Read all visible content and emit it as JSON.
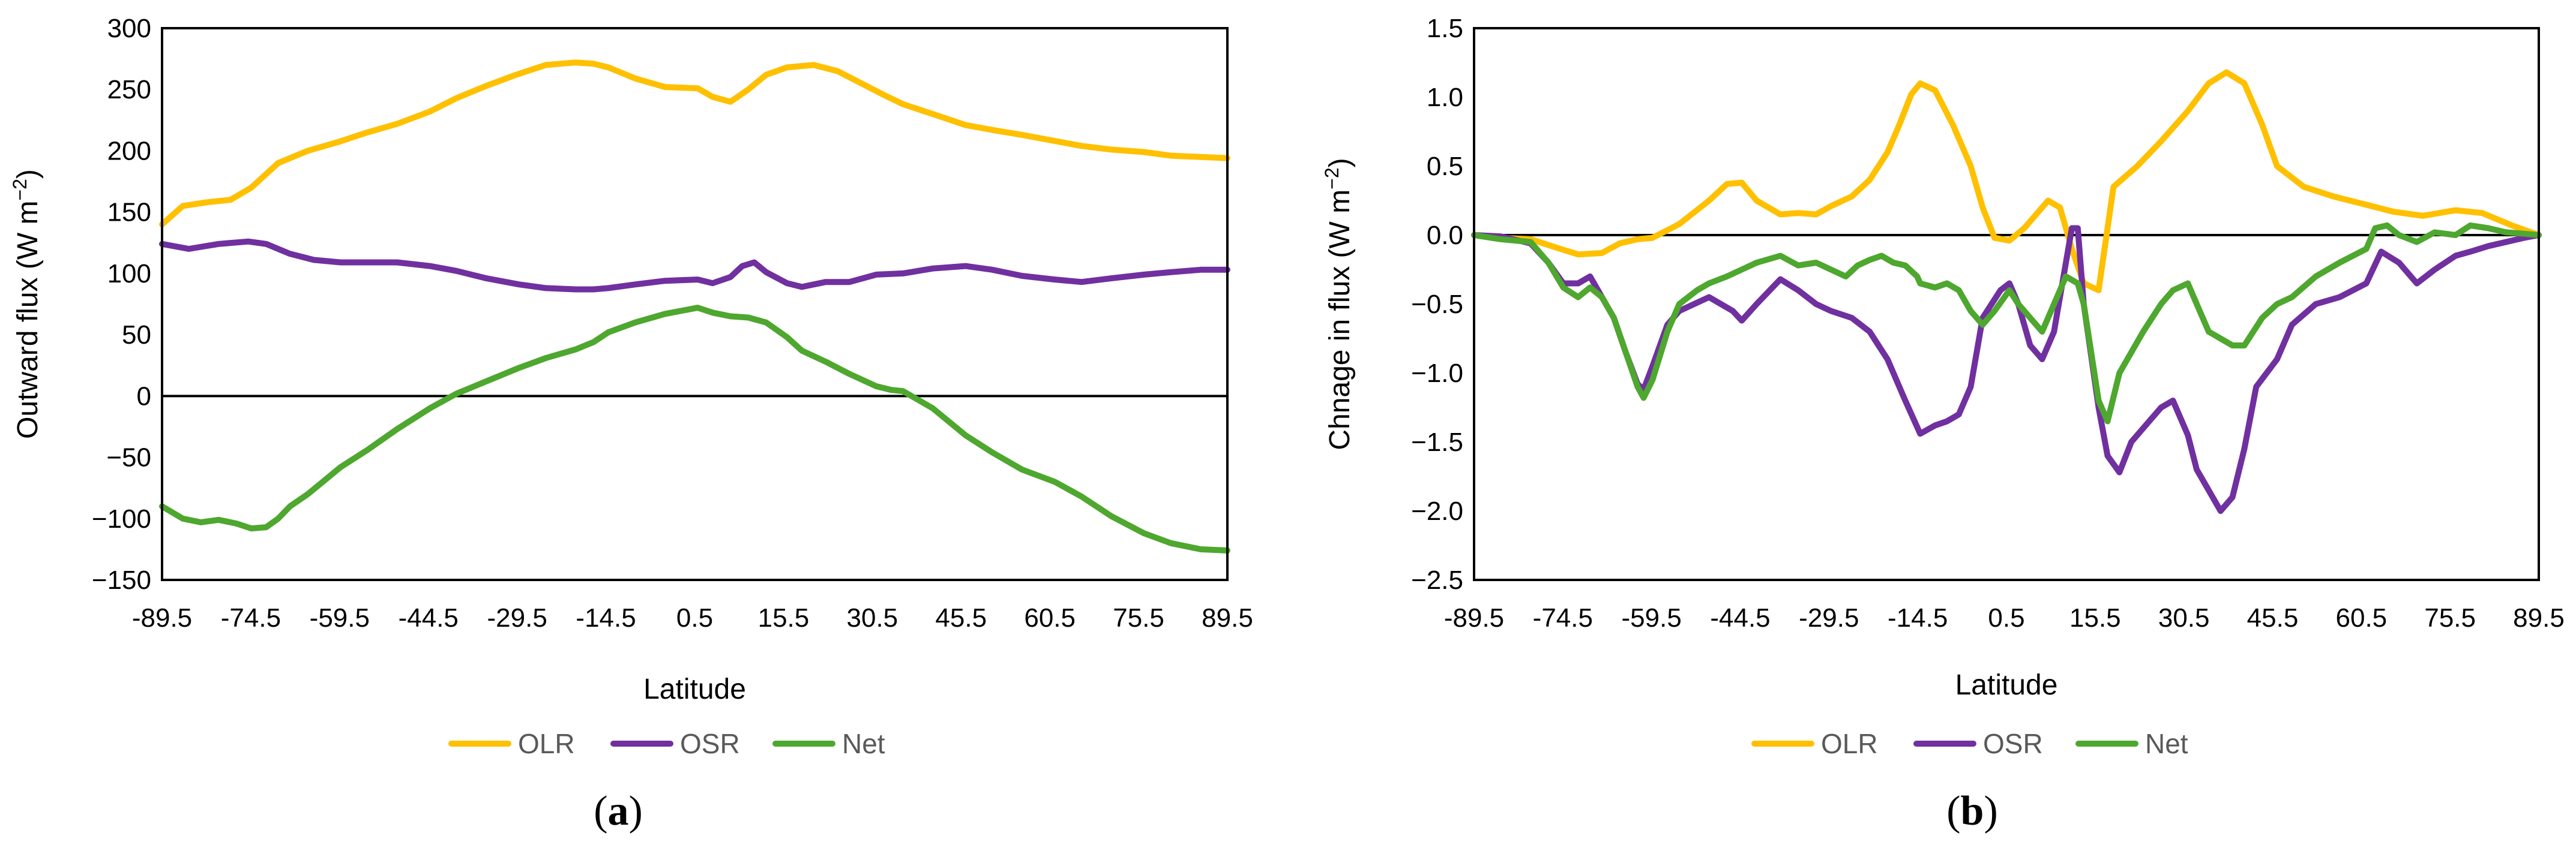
{
  "figure": {
    "panels": [
      {
        "label_open": "(",
        "label_letter": "a",
        "label_close": ")"
      },
      {
        "label_open": "(",
        "label_letter": "b",
        "label_close": ")"
      }
    ]
  },
  "colors": {
    "OLR": "#FFC000",
    "OSR": "#7030A0",
    "Net": "#4EA72E",
    "zero_line": "#000000"
  },
  "chart_data": [
    {
      "type": "line",
      "panel": "a",
      "title": "",
      "xlabel": "Latitude",
      "ylabel": "Outward flux (W m−2)",
      "ylabel_text": "Outward flux (W m",
      "ylabel_sup": "−2",
      "ylabel_close": ")",
      "xlim": [
        -89.5,
        89.5
      ],
      "ylim": [
        -150,
        300
      ],
      "xticks": [
        "-89.5",
        "-74.5",
        "-59.5",
        "-44.5",
        "-29.5",
        "-14.5",
        "0.5",
        "15.5",
        "30.5",
        "45.5",
        "60.5",
        "75.5",
        "89.5"
      ],
      "yticks": [
        "300",
        "250",
        "200",
        "150",
        "100",
        "50",
        "0",
        "−50",
        "−100",
        "−150"
      ],
      "legend_position": "bottom",
      "series": [
        {
          "name": "OLR",
          "x": [
            -89.5,
            -86,
            -82,
            -78,
            -74.5,
            -70,
            -65,
            -60,
            -55,
            -50,
            -44.5,
            -40,
            -35,
            -30,
            -25,
            -20,
            -17,
            -14.5,
            -10,
            -5,
            0.5,
            3,
            6,
            9,
            12,
            15.5,
            20,
            24,
            28,
            32,
            35,
            40,
            45.5,
            50,
            55,
            60.5,
            65,
            70,
            75.5,
            80,
            85,
            89.5
          ],
          "y": [
            140,
            155,
            158,
            160,
            170,
            190,
            200,
            207,
            215,
            222,
            232,
            243,
            253,
            262,
            270,
            272,
            271,
            268,
            259,
            252,
            251,
            244,
            240,
            250,
            262,
            268,
            270,
            265,
            255,
            245,
            238,
            230,
            221,
            217,
            213,
            208,
            204,
            201,
            199,
            196,
            195,
            194
          ]
        },
        {
          "name": "OSR",
          "x": [
            -89.5,
            -85,
            -80,
            -75,
            -72,
            -68,
            -64,
            -59.5,
            -55,
            -50,
            -44.5,
            -40,
            -35,
            -29.5,
            -25,
            -20,
            -17,
            -14.5,
            -10,
            -5,
            0.5,
            3,
            6,
            8,
            10,
            12,
            15.5,
            18,
            22,
            26,
            30.5,
            35,
            40,
            45.5,
            50,
            55,
            60.5,
            65,
            70,
            75.5,
            80,
            85,
            89.5
          ],
          "y": [
            124,
            120,
            124,
            126,
            124,
            116,
            111,
            109,
            109,
            109,
            106,
            102,
            96,
            91,
            88,
            87,
            87,
            88,
            91,
            94,
            95,
            92,
            97,
            106,
            109,
            101,
            92,
            89,
            93,
            93,
            99,
            100,
            104,
            106,
            103,
            98,
            95,
            93,
            96,
            99,
            101,
            103,
            103
          ]
        },
        {
          "name": "Net",
          "x": [
            -89.5,
            -86,
            -83,
            -80,
            -77,
            -74.5,
            -72,
            -70,
            -68,
            -65,
            -62,
            -59.5,
            -55,
            -50,
            -44.5,
            -40,
            -35,
            -29.5,
            -25,
            -20,
            -17,
            -14.5,
            -10,
            -5,
            0.5,
            3,
            6,
            9,
            12,
            15.5,
            18,
            22,
            26,
            30.5,
            33,
            35,
            40,
            45.5,
            50,
            55,
            60.5,
            65,
            70,
            75.5,
            80,
            85,
            89.5
          ],
          "y": [
            -90,
            -100,
            -103,
            -101,
            -104,
            -108,
            -107,
            -100,
            -90,
            -80,
            -68,
            -58,
            -44,
            -27,
            -10,
            2,
            12,
            23,
            31,
            38,
            44,
            52,
            60,
            67,
            72,
            68,
            65,
            64,
            60,
            48,
            37,
            28,
            18,
            8,
            5,
            4,
            -10,
            -32,
            -46,
            -60,
            -70,
            -82,
            -98,
            -112,
            -120,
            -125,
            -126
          ]
        }
      ]
    },
    {
      "type": "line",
      "panel": "b",
      "title": "",
      "xlabel": "Latitude",
      "ylabel": "Chnage in flux (W m−2)",
      "ylabel_text": "Chnage in flux (W m",
      "ylabel_sup": "−2",
      "ylabel_close": ")",
      "xlim": [
        -89.5,
        89.5
      ],
      "ylim": [
        -2.5,
        1.5
      ],
      "xticks": [
        "-89.5",
        "-74.5",
        "-59.5",
        "-44.5",
        "-29.5",
        "-14.5",
        "0.5",
        "15.5",
        "30.5",
        "45.5",
        "60.5",
        "75.5",
        "89.5"
      ],
      "yticks": [
        "1.5",
        "1.0",
        "0.5",
        "0.0",
        "−0.5",
        "−1.0",
        "−1.5",
        "−2.0",
        "−2.5"
      ],
      "legend_position": "bottom",
      "series": [
        {
          "name": "OLR",
          "x": [
            -89.5,
            -85,
            -80,
            -75,
            -72,
            -68,
            -65,
            -62,
            -59.5,
            -55,
            -50,
            -47,
            -44.5,
            -42,
            -38,
            -35,
            -32,
            -29.5,
            -26,
            -23,
            -20,
            -18,
            -16,
            -14.5,
            -12,
            -9,
            -6,
            -4,
            -2,
            0.5,
            3,
            5,
            7,
            9,
            11,
            13,
            15.5,
            18,
            22,
            26,
            30.5,
            34,
            37,
            40,
            43,
            45.5,
            50,
            55,
            60.5,
            65,
            70,
            75.5,
            80,
            85,
            89.5
          ],
          "y": [
            0.0,
            -0.02,
            -0.03,
            -0.1,
            -0.14,
            -0.13,
            -0.06,
            -0.03,
            -0.02,
            0.08,
            0.25,
            0.37,
            0.38,
            0.25,
            0.15,
            0.16,
            0.15,
            0.21,
            0.28,
            0.4,
            0.6,
            0.8,
            1.02,
            1.1,
            1.05,
            0.8,
            0.5,
            0.2,
            -0.02,
            -0.04,
            0.05,
            0.15,
            0.25,
            0.2,
            -0.1,
            -0.35,
            -0.4,
            0.35,
            0.5,
            0.68,
            0.9,
            1.1,
            1.18,
            1.1,
            0.8,
            0.5,
            0.35,
            0.28,
            0.22,
            0.17,
            0.14,
            0.18,
            0.16,
            0.07,
            0.0
          ]
        },
        {
          "name": "OSR",
          "x": [
            -89.5,
            -85,
            -80,
            -77,
            -74.5,
            -72,
            -70,
            -68,
            -66,
            -64,
            -62,
            -61,
            -59.5,
            -57,
            -55,
            -50,
            -46,
            -44.5,
            -42,
            -38,
            -35,
            -32,
            -29.5,
            -26,
            -23,
            -20,
            -17,
            -14.5,
            -12,
            -10,
            -8,
            -6,
            -4,
            -1,
            0.5,
            2,
            4,
            6,
            8,
            10,
            11,
            12,
            13,
            15.5,
            17,
            19,
            21,
            23,
            26,
            28,
            30.5,
            32,
            34,
            36,
            38,
            40,
            42,
            45.5,
            48,
            52,
            56,
            60.5,
            63,
            66,
            69,
            72,
            75.5,
            78,
            81,
            84,
            87,
            89.5
          ],
          "y": [
            0.0,
            -0.01,
            -0.06,
            -0.2,
            -0.35,
            -0.35,
            -0.3,
            -0.45,
            -0.6,
            -0.85,
            -1.08,
            -1.12,
            -0.95,
            -0.65,
            -0.55,
            -0.45,
            -0.55,
            -0.62,
            -0.5,
            -0.32,
            -0.4,
            -0.5,
            -0.55,
            -0.6,
            -0.7,
            -0.9,
            -1.2,
            -1.44,
            -1.38,
            -1.35,
            -1.3,
            -1.1,
            -0.6,
            -0.4,
            -0.35,
            -0.5,
            -0.8,
            -0.9,
            -0.7,
            -0.2,
            0.05,
            0.05,
            -0.5,
            -1.25,
            -1.6,
            -1.72,
            -1.5,
            -1.4,
            -1.25,
            -1.2,
            -1.45,
            -1.7,
            -1.85,
            -2.0,
            -1.9,
            -1.55,
            -1.1,
            -0.9,
            -0.65,
            -0.5,
            -0.45,
            -0.35,
            -0.12,
            -0.2,
            -0.35,
            -0.25,
            -0.15,
            -0.12,
            -0.08,
            -0.05,
            -0.02,
            0.0
          ]
        },
        {
          "name": "Net",
          "x": [
            -89.5,
            -85,
            -80,
            -77,
            -74.5,
            -72,
            -70,
            -68,
            -66,
            -64,
            -62,
            -61,
            -59.5,
            -57,
            -55,
            -52,
            -50,
            -47,
            -44.5,
            -42,
            -38,
            -35,
            -32,
            -29.5,
            -27,
            -25,
            -23,
            -21,
            -19,
            -17,
            -15,
            -14.5,
            -12,
            -10,
            -8,
            -6,
            -4,
            -2,
            0.5,
            2,
            4,
            6,
            8,
            10,
            12,
            13,
            15.5,
            17,
            19,
            21,
            23,
            26,
            28,
            30.5,
            32,
            34,
            36,
            38,
            40,
            43,
            45.5,
            48,
            52,
            56,
            60.5,
            62,
            64,
            66,
            69,
            72,
            75.5,
            78,
            81,
            84,
            87,
            89.5
          ],
          "y": [
            0.0,
            -0.03,
            -0.05,
            -0.2,
            -0.38,
            -0.45,
            -0.38,
            -0.45,
            -0.6,
            -0.85,
            -1.1,
            -1.18,
            -1.05,
            -0.7,
            -0.5,
            -0.4,
            -0.35,
            -0.3,
            -0.25,
            -0.2,
            -0.15,
            -0.22,
            -0.2,
            -0.25,
            -0.3,
            -0.22,
            -0.18,
            -0.15,
            -0.2,
            -0.22,
            -0.3,
            -0.35,
            -0.38,
            -0.35,
            -0.4,
            -0.55,
            -0.65,
            -0.55,
            -0.4,
            -0.5,
            -0.6,
            -0.7,
            -0.5,
            -0.3,
            -0.35,
            -0.5,
            -1.2,
            -1.35,
            -1.0,
            -0.85,
            -0.7,
            -0.5,
            -0.4,
            -0.35,
            -0.5,
            -0.7,
            -0.75,
            -0.8,
            -0.8,
            -0.6,
            -0.5,
            -0.45,
            -0.3,
            -0.2,
            -0.1,
            0.05,
            0.07,
            0.0,
            -0.05,
            0.02,
            0.0,
            0.07,
            0.05,
            0.02,
            0.01,
            0.0
          ]
        }
      ]
    }
  ]
}
